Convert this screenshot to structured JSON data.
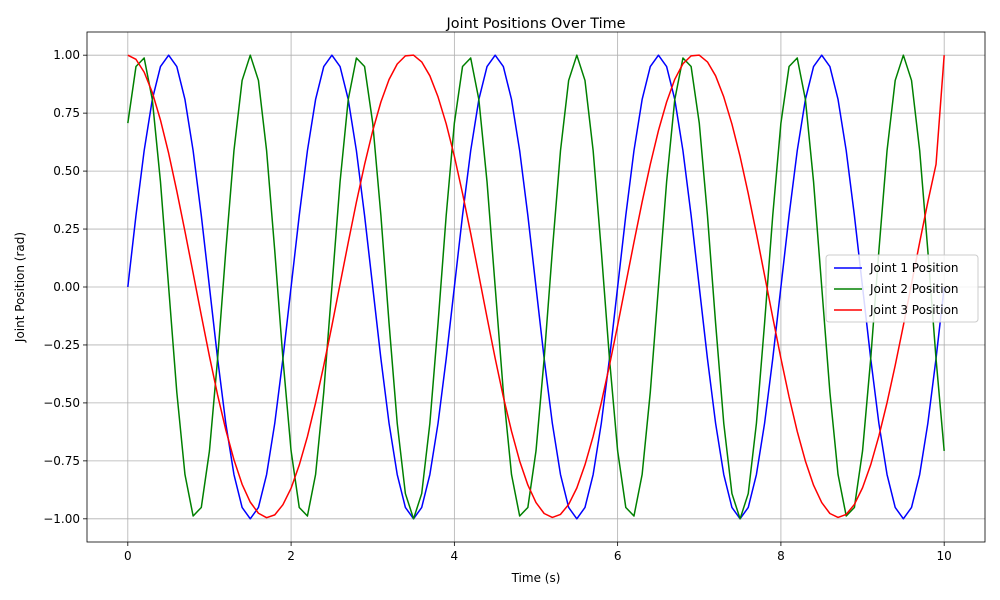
{
  "chart_data": {
    "type": "line",
    "title": "Joint Positions Over Time",
    "xlabel": "Time (s)",
    "ylabel": "Joint Position (rad)",
    "xlim": [
      -0.5,
      10.5
    ],
    "ylim": [
      -1.1,
      1.1
    ],
    "x_ticks": [
      0,
      2,
      4,
      6,
      8,
      10
    ],
    "x_tick_labels": [
      "0",
      "2",
      "4",
      "6",
      "8",
      "10"
    ],
    "y_ticks": [
      -1.0,
      -0.75,
      -0.5,
      -0.25,
      0.0,
      0.25,
      0.5,
      0.75,
      1.0
    ],
    "y_tick_labels": [
      "−1.00",
      "−0.75",
      "−0.50",
      "−0.25",
      "0.00",
      "0.25",
      "0.50",
      "0.75",
      "1.00"
    ],
    "grid": true,
    "legend_position": "center-right",
    "x": [
      0.0,
      0.1,
      0.2,
      0.3,
      0.4,
      0.5,
      0.6,
      0.7,
      0.8,
      0.9,
      1.0,
      1.1,
      1.2,
      1.3,
      1.4,
      1.5,
      1.6,
      1.7,
      1.8,
      1.9,
      2.0,
      2.1,
      2.2,
      2.3,
      2.4,
      2.5,
      2.6,
      2.7,
      2.8,
      2.9,
      3.0,
      3.1,
      3.2,
      3.3,
      3.4,
      3.5,
      3.6,
      3.7,
      3.8,
      3.9,
      4.0,
      4.1,
      4.2,
      4.3,
      4.4,
      4.5,
      4.6,
      4.7,
      4.8,
      4.9,
      5.0,
      5.1,
      5.2,
      5.3,
      5.4,
      5.5,
      5.6,
      5.7,
      5.8,
      5.9,
      6.0,
      6.1,
      6.2,
      6.3,
      6.4,
      6.5,
      6.6,
      6.7,
      6.8,
      6.9,
      7.0,
      7.1,
      7.2,
      7.3,
      7.4,
      7.5,
      7.6,
      7.7,
      7.8,
      7.9,
      8.0,
      8.1,
      8.2,
      8.3,
      8.4,
      8.5,
      8.6,
      8.7,
      8.8,
      8.9,
      9.0,
      9.1,
      9.2,
      9.3,
      9.4,
      9.5,
      9.6,
      9.7,
      9.8,
      9.9,
      10.0
    ],
    "series": [
      {
        "name": "Joint 1 Position",
        "color": "#0000ff",
        "values": [
          0.0,
          0.309,
          0.588,
          0.809,
          0.951,
          1.0,
          0.951,
          0.809,
          0.588,
          0.309,
          0.0,
          -0.309,
          -0.588,
          -0.809,
          -0.951,
          -1.0,
          -0.951,
          -0.809,
          -0.588,
          -0.309,
          0.0,
          0.309,
          0.588,
          0.809,
          0.951,
          1.0,
          0.951,
          0.809,
          0.588,
          0.309,
          0.0,
          -0.309,
          -0.588,
          -0.809,
          -0.951,
          -1.0,
          -0.951,
          -0.809,
          -0.588,
          -0.309,
          0.0,
          0.309,
          0.588,
          0.809,
          0.951,
          1.0,
          0.951,
          0.809,
          0.588,
          0.309,
          0.0,
          -0.309,
          -0.588,
          -0.809,
          -0.951,
          -1.0,
          -0.951,
          -0.809,
          -0.588,
          -0.309,
          0.0,
          0.309,
          0.588,
          0.809,
          0.951,
          1.0,
          0.951,
          0.809,
          0.588,
          0.309,
          0.0,
          -0.309,
          -0.588,
          -0.809,
          -0.951,
          -1.0,
          -0.951,
          -0.809,
          -0.588,
          -0.309,
          0.0,
          0.309,
          0.588,
          0.809,
          0.951,
          1.0,
          0.951,
          0.809,
          0.588,
          0.309,
          0.0,
          -0.309,
          -0.588,
          -0.809,
          -0.951,
          -1.0,
          -0.951,
          -0.809,
          -0.588,
          -0.309,
          0.0
        ]
      },
      {
        "name": "Joint 2 Position",
        "color": "#008000",
        "values": [
          0.707,
          0.951,
          0.988,
          0.809,
          0.454,
          0.0,
          -0.454,
          -0.809,
          -0.988,
          -0.951,
          -0.707,
          -0.309,
          0.156,
          0.588,
          0.891,
          1.0,
          0.891,
          0.588,
          0.156,
          -0.309,
          -0.707,
          -0.951,
          -0.988,
          -0.809,
          -0.454,
          0.0,
          0.454,
          0.809,
          0.988,
          0.951,
          0.707,
          0.309,
          -0.156,
          -0.588,
          -0.891,
          -1.0,
          -0.891,
          -0.588,
          -0.156,
          0.309,
          0.707,
          0.951,
          0.988,
          0.809,
          0.454,
          0.0,
          -0.454,
          -0.809,
          -0.988,
          -0.951,
          -0.707,
          -0.309,
          0.156,
          0.588,
          0.891,
          1.0,
          0.891,
          0.588,
          0.156,
          -0.309,
          -0.707,
          -0.951,
          -0.988,
          -0.809,
          -0.454,
          0.0,
          0.454,
          0.809,
          0.988,
          0.951,
          0.707,
          0.309,
          -0.156,
          -0.588,
          -0.891,
          -1.0,
          -0.891,
          -0.588,
          -0.156,
          0.309,
          0.707,
          0.951,
          0.988,
          0.809,
          0.454,
          0.0,
          -0.454,
          -0.809,
          -0.988,
          -0.951,
          -0.707,
          -0.309,
          0.156,
          0.588,
          0.891,
          1.0,
          0.891,
          0.588,
          0.156,
          -0.309,
          -0.707
        ]
      },
      {
        "name": "Joint 3 Position",
        "color": "#ff0000",
        "values": [
          1.0,
          0.982,
          0.927,
          0.839,
          0.72,
          0.577,
          0.414,
          0.24,
          0.06,
          -0.122,
          -0.299,
          -0.466,
          -0.616,
          -0.745,
          -0.851,
          -0.928,
          -0.976,
          -0.995,
          -0.983,
          -0.939,
          -0.868,
          -0.768,
          -0.645,
          -0.5,
          -0.339,
          -0.167,
          0.013,
          0.192,
          0.366,
          0.528,
          0.674,
          0.798,
          0.895,
          0.962,
          0.997,
          1.0,
          0.971,
          0.911,
          0.82,
          0.704,
          0.564,
          0.404,
          0.231,
          0.05,
          -0.131,
          -0.308,
          -0.474,
          -0.622,
          -0.751,
          -0.854,
          -0.93,
          -0.977,
          -0.994,
          -0.981,
          -0.938,
          -0.867,
          -0.767,
          -0.644,
          -0.499,
          -0.338,
          -0.166,
          0.014,
          0.193,
          0.367,
          0.529,
          0.675,
          0.798,
          0.896,
          0.963,
          0.997,
          1.0,
          0.971,
          0.911,
          0.82,
          0.703,
          0.563,
          0.403,
          0.23,
          0.05,
          -0.131,
          -0.308,
          -0.474,
          -0.623,
          -0.751,
          -0.855,
          -0.93,
          -0.977,
          -0.994,
          -0.981,
          -0.938,
          -0.866,
          -0.767,
          -0.643,
          -0.499,
          -0.338,
          -0.166,
          0.014,
          0.193,
          0.367,
          0.529,
          1.0
        ]
      }
    ]
  }
}
